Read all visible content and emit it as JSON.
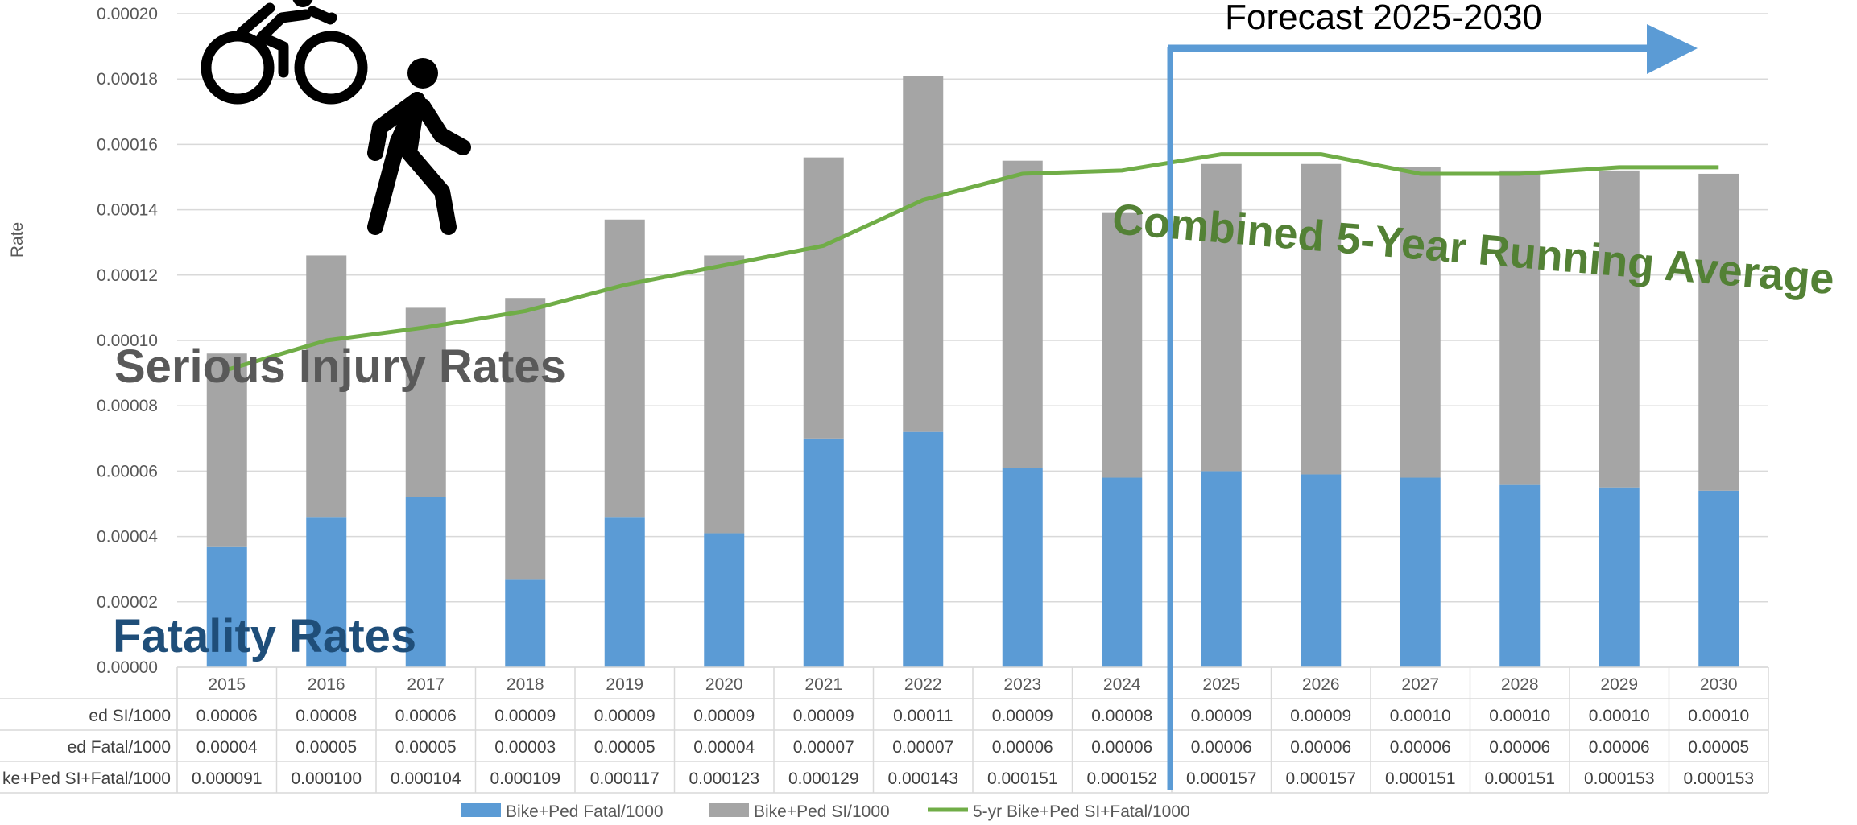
{
  "chart_data": {
    "type": "bar",
    "stacked": true,
    "ylabel": "Rate",
    "ylim": [
      0,
      0.0002
    ],
    "ytick_labels": [
      "0.00000",
      "0.00002",
      "0.00004",
      "0.00006",
      "0.00008",
      "0.00010",
      "0.00012",
      "0.00014",
      "0.00016",
      "0.00018",
      "0.00020"
    ],
    "grid": true,
    "legend_position": "bottom",
    "categories": [
      "2015",
      "2016",
      "2017",
      "2018",
      "2019",
      "2020",
      "2021",
      "2022",
      "2023",
      "2024",
      "2025",
      "2026",
      "2027",
      "2028",
      "2029",
      "2030"
    ],
    "series": [
      {
        "name": "Bike+Ped Fatal/1000",
        "kind": "bar",
        "color": "#5b9bd5",
        "values": [
          3.7e-05,
          4.6e-05,
          5.2e-05,
          2.7e-05,
          4.6e-05,
          4.1e-05,
          7e-05,
          7.2e-05,
          6.1e-05,
          5.8e-05,
          6e-05,
          5.9e-05,
          5.8e-05,
          5.6e-05,
          5.5e-05,
          5.4e-05
        ]
      },
      {
        "name": "Bike+Ped SI/1000",
        "kind": "bar",
        "color": "#a5a5a5",
        "values": [
          5.9e-05,
          8e-05,
          5.8e-05,
          8.6e-05,
          9.1e-05,
          8.5e-05,
          8.6e-05,
          0.000109,
          9.4e-05,
          8.1e-05,
          9.4e-05,
          9.5e-05,
          9.5e-05,
          9.6e-05,
          9.7e-05,
          9.7e-05
        ]
      },
      {
        "name": "5-yr Bike+Ped SI+Fatal/1000",
        "kind": "line",
        "color": "#70ad47",
        "values": [
          9.1e-05,
          0.0001,
          0.000104,
          0.000109,
          0.000117,
          0.000123,
          0.000129,
          0.000143,
          0.000151,
          0.000152,
          0.000157,
          0.000157,
          0.000151,
          0.000151,
          0.000153,
          0.000153
        ]
      }
    ],
    "table": {
      "rows": [
        {
          "label": "Bike+Ped SI/1000",
          "display_label": "ed SI/1000",
          "cells": [
            "0.00006",
            "0.00008",
            "0.00006",
            "0.00009",
            "0.00009",
            "0.00009",
            "0.00009",
            "0.00011",
            "0.00009",
            "0.00008",
            "0.00009",
            "0.00009",
            "0.00010",
            "0.00010",
            "0.00010",
            "0.00010"
          ]
        },
        {
          "label": "Bike+Ped Fatal/1000",
          "display_label": "ed Fatal/1000",
          "cells": [
            "0.00004",
            "0.00005",
            "0.00005",
            "0.00003",
            "0.00005",
            "0.00004",
            "0.00007",
            "0.00007",
            "0.00006",
            "0.00006",
            "0.00006",
            "0.00006",
            "0.00006",
            "0.00006",
            "0.00006",
            "0.00005"
          ]
        },
        {
          "label": "5-yr Bike+Ped SI+Fatal/1000",
          "display_label": "ke+Ped SI+Fatal/1000",
          "cells": [
            "0.000091",
            "0.000100",
            "0.000104",
            "0.000109",
            "0.000117",
            "0.000123",
            "0.000129",
            "0.000143",
            "0.000151",
            "0.000152",
            "0.000157",
            "0.000157",
            "0.000151",
            "0.000151",
            "0.000153",
            "0.000153"
          ]
        }
      ]
    },
    "annotations": {
      "serious_injury": "Serious Injury Rates",
      "fatality": "Fatality Rates",
      "combined": "Combined 5-Year Running Average",
      "forecast": "Forecast 2025-2030",
      "forecast_start": "2025"
    },
    "icons": [
      "cyclist-icon",
      "pedestrian-icon"
    ],
    "annotation_colors": {
      "serious_injury": "#595959",
      "fatality": "#1f4e79",
      "combined": "#538135",
      "forecast_marker": "#5b9bd5"
    }
  }
}
